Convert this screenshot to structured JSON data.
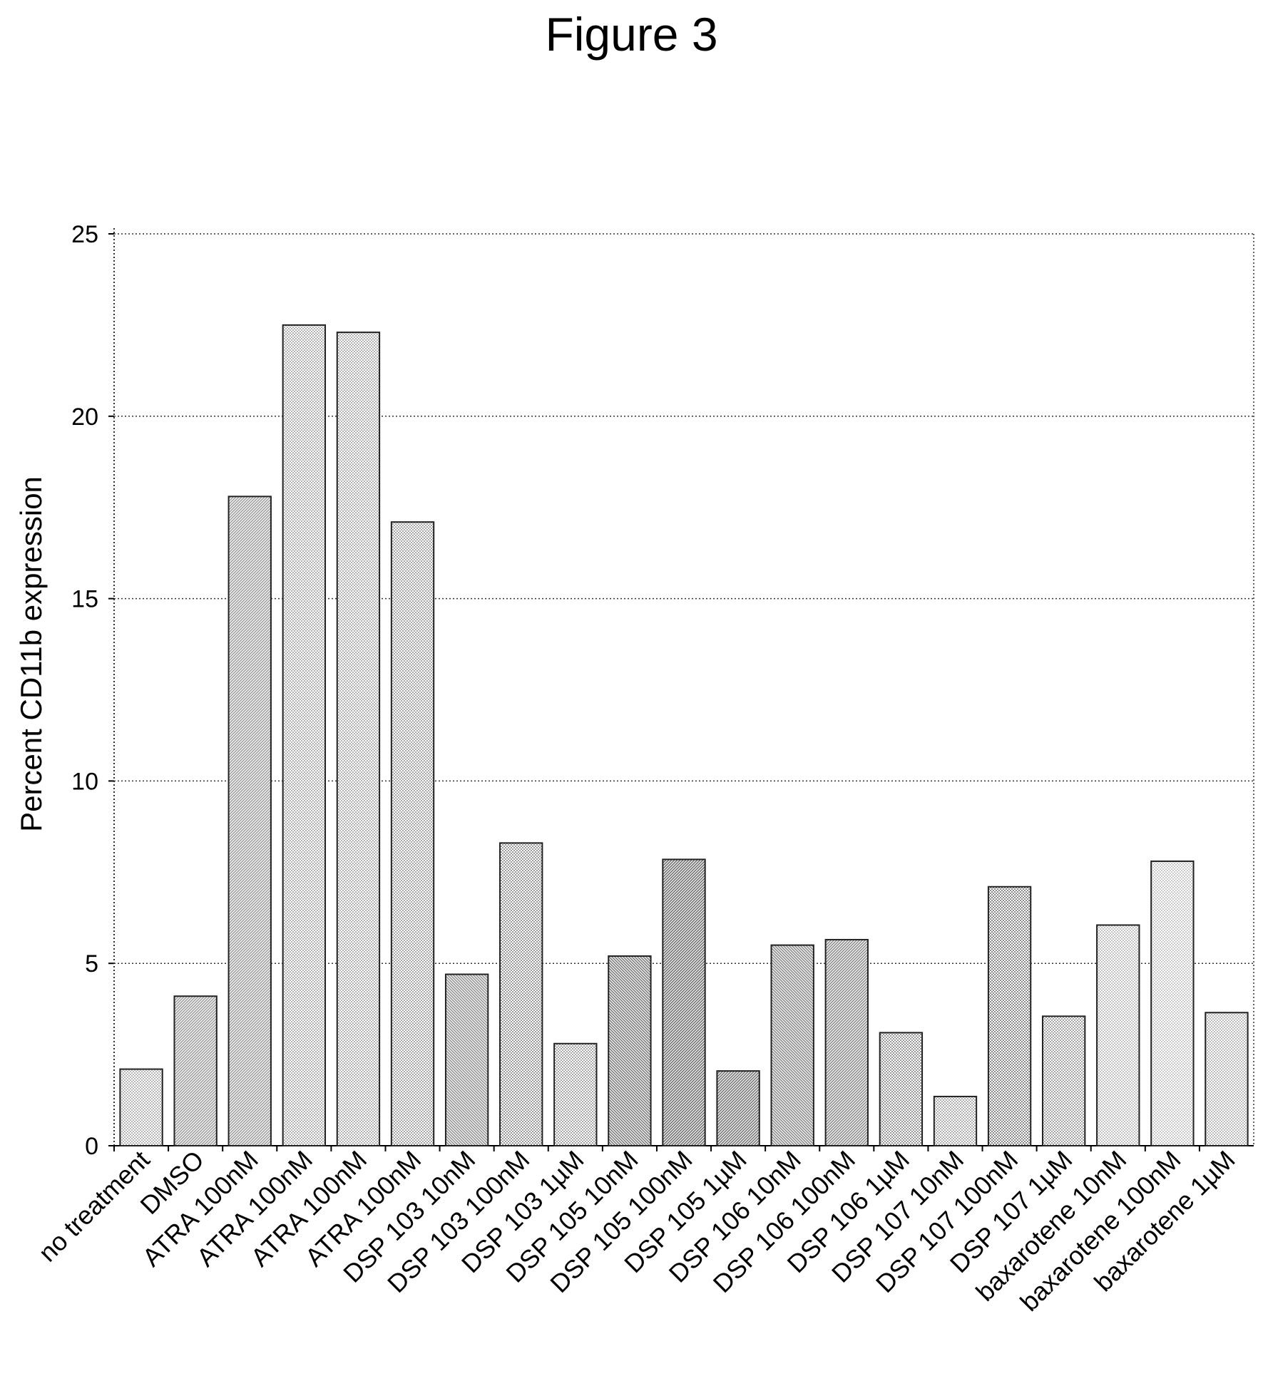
{
  "figure_title": "Figure 3",
  "chart_data": {
    "type": "bar",
    "title": "",
    "xlabel": "",
    "ylabel": "Percent CD11b expression",
    "ylim": [
      0,
      25
    ],
    "yticks": [
      0,
      5,
      10,
      15,
      20,
      25
    ],
    "grid": "horizontal dotted",
    "legend": "none",
    "categories": [
      "no treatment",
      "DMSO",
      "ATRA 100nM",
      "ATRA 100nM",
      "ATRA 100nM",
      "ATRA 100nM",
      "DSP 103 10nM",
      "DSP 103 100nM",
      "DSP 103 1µM",
      "DSP 105 10nM",
      "DSP 105 100nM",
      "DSP 105 1µM",
      "DSP 106 10nM",
      "DSP 106 100nM",
      "DSP 106 1µM",
      "DSP 107 10nM",
      "DSP 107 100nM",
      "DSP 107 1µM",
      "baxarotene 10nM",
      "baxarotene 100nM",
      "baxarotene 1µM"
    ],
    "values": [
      2.1,
      4.1,
      17.8,
      22.5,
      22.3,
      17.1,
      4.7,
      8.3,
      2.8,
      5.2,
      7.85,
      2.05,
      5.5,
      5.65,
      3.1,
      1.35,
      7.1,
      3.55,
      6.05,
      7.8,
      3.65
    ],
    "fill_styles": [
      "dots",
      "diag-left",
      "diag-left",
      "dots",
      "dots",
      "dots",
      "diag-right",
      "dots",
      "dots",
      "diag-right",
      "diag-left",
      "diag-left",
      "diag-right",
      "diag-left",
      "dots",
      "dots",
      "dots",
      "dots",
      "dots",
      "dots",
      "dots"
    ],
    "fill_colors": [
      "#b8b8b8",
      "#a0a0a0",
      "#a0a0a0",
      "#b4b4b4",
      "#b4b4b4",
      "#a8a8a8",
      "#949494",
      "#9c9c9c",
      "#a8a8a8",
      "#7c7c7c",
      "#6e6e6e",
      "#767676",
      "#8c8c8c",
      "#8c8c8c",
      "#9a9a9a",
      "#b0b0b0",
      "#8a8a8a",
      "#a4a4a4",
      "#c2c2c2",
      "#cacaca",
      "#bababa"
    ]
  }
}
